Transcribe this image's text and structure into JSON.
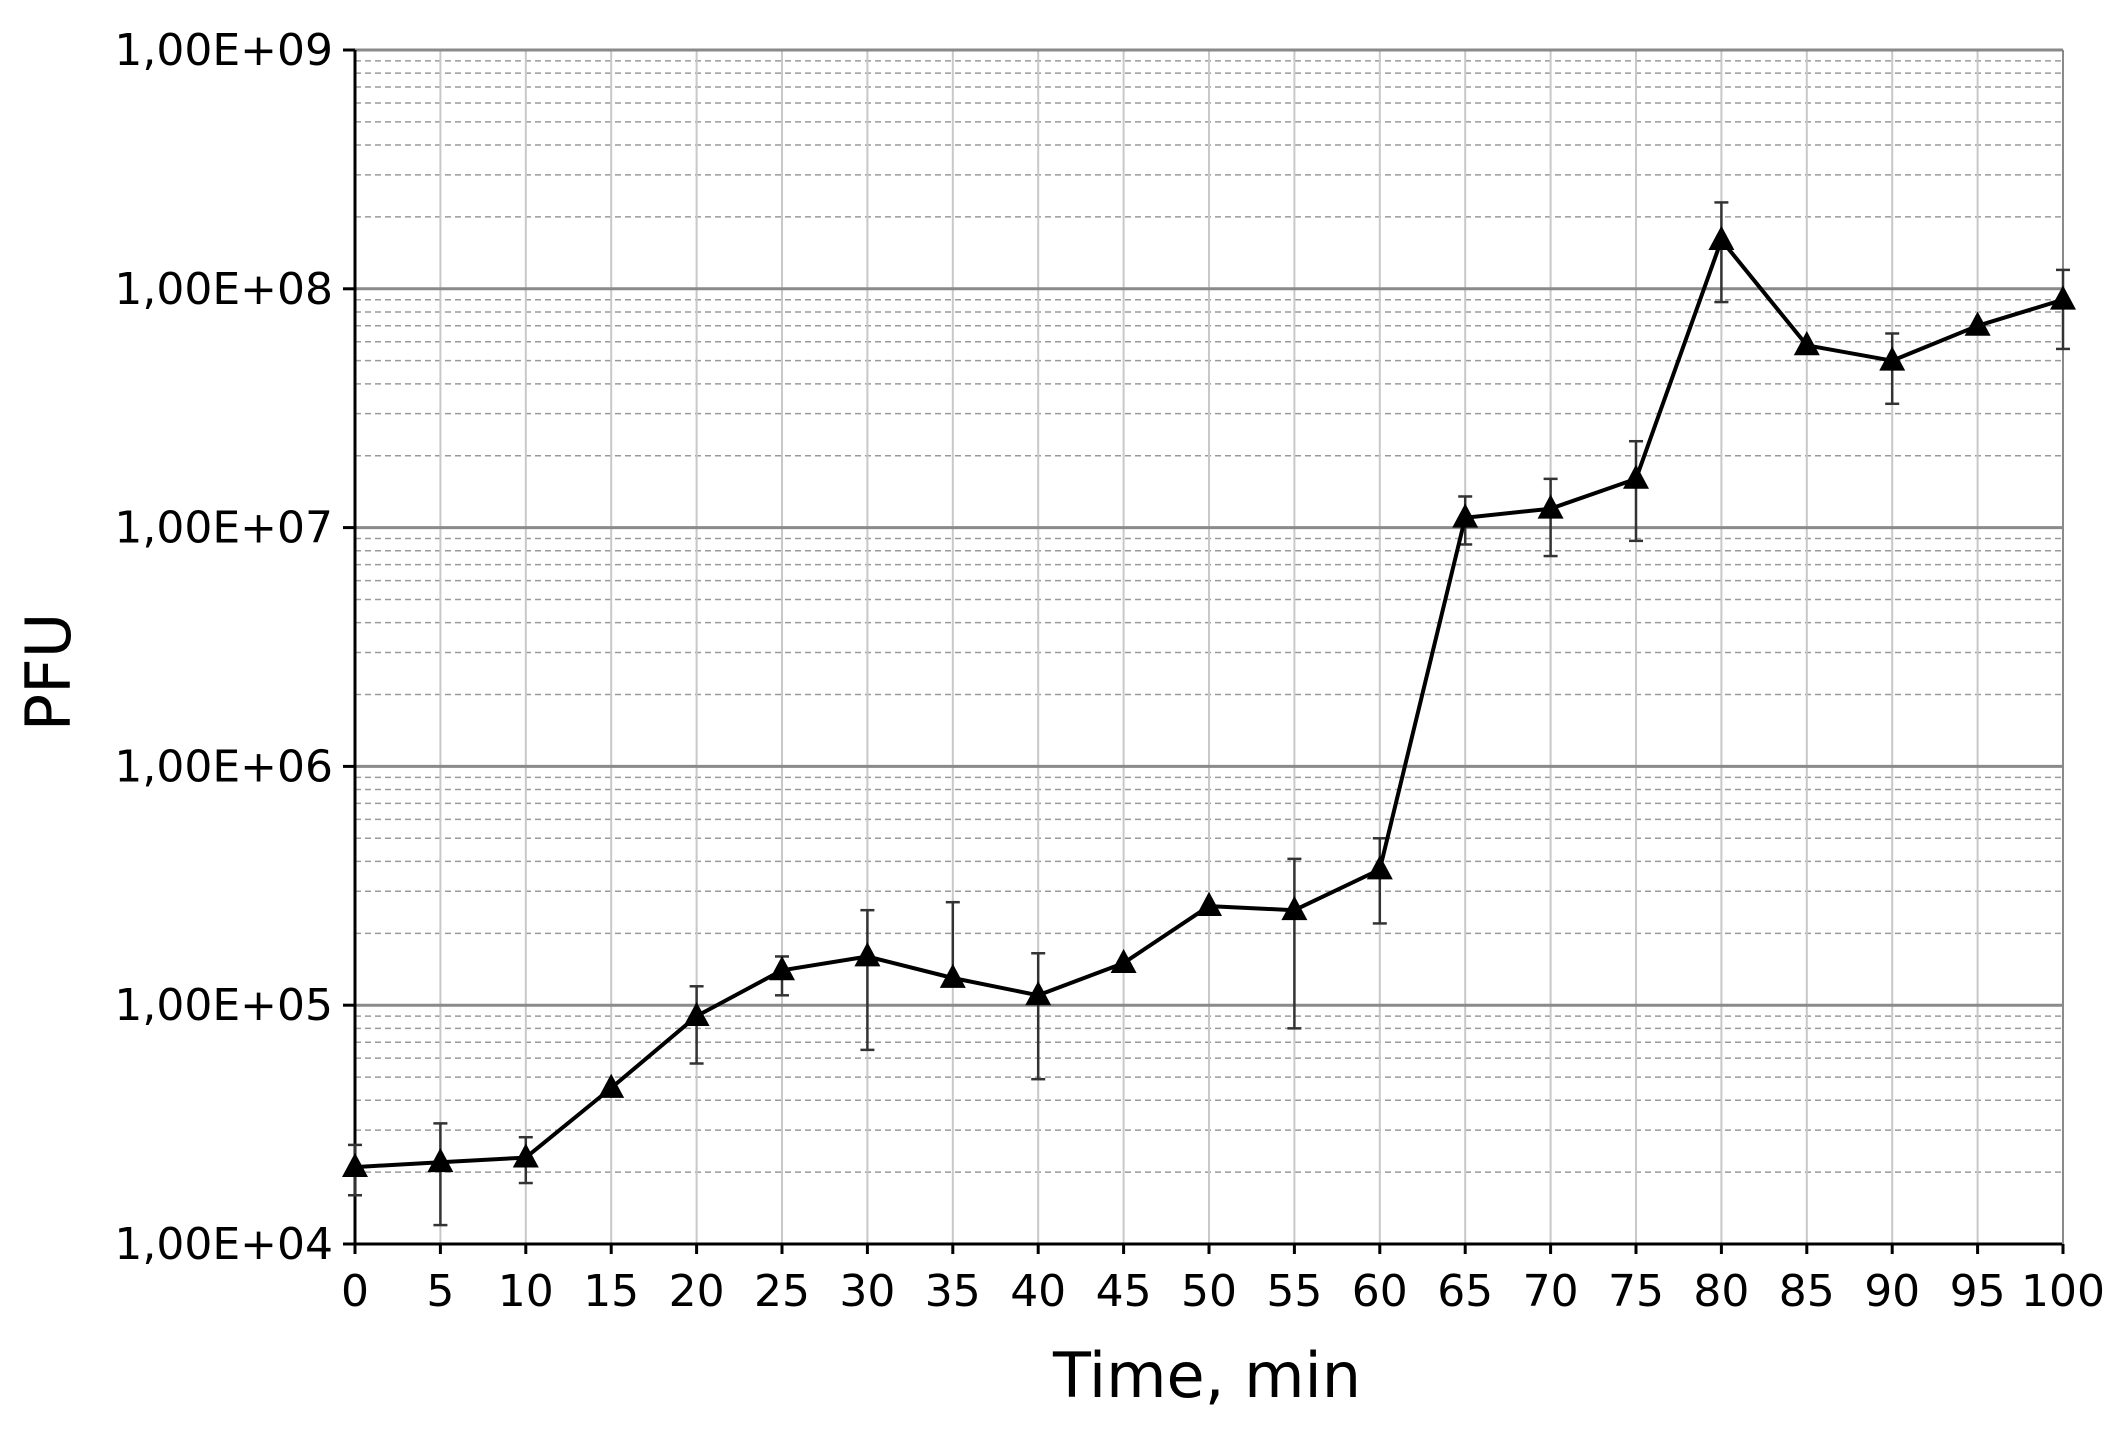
{
  "chart_data": {
    "type": "line",
    "title": "",
    "xlabel": "Time, min",
    "ylabel": "PFU",
    "y_scale": "log",
    "ylim": [
      10000,
      1000000000
    ],
    "xlim": [
      0,
      100
    ],
    "grid": true,
    "legend": "none",
    "x_tick_labels": [
      "0",
      "5",
      "10",
      "15",
      "20",
      "25",
      "30",
      "35",
      "40",
      "45",
      "50",
      "55",
      "60",
      "65",
      "70",
      "75",
      "80",
      "85",
      "90",
      "95",
      "100"
    ],
    "y_tick_labels": [
      "1,00E+04",
      "1,00E+05",
      "1,00E+06",
      "1,00E+07",
      "1,00E+08",
      "1,00E+09"
    ],
    "y_tick_values": [
      10000,
      100000,
      1000000,
      10000000,
      100000000,
      1000000000
    ],
    "series": [
      {
        "marker": "triangle",
        "color": "#000000",
        "x": [
          0,
          5,
          10,
          15,
          20,
          25,
          30,
          35,
          40,
          45,
          50,
          55,
          60,
          65,
          70,
          75,
          80,
          85,
          90,
          95,
          100
        ],
        "y": [
          21000,
          22000,
          23000,
          45000,
          90000,
          140000,
          160000,
          130000,
          110000,
          150000,
          260000,
          250000,
          370000,
          11000000,
          12000000,
          16000000,
          160000000,
          58000000,
          50000000,
          70000000,
          90000000
        ],
        "err_low": [
          16000,
          12000,
          18000,
          45000,
          57000,
          110000,
          65000,
          130000,
          49000,
          150000,
          260000,
          80000,
          220000,
          8500000,
          7600000,
          8800000,
          88000000,
          58000000,
          33000000,
          70000000,
          56000000
        ],
        "err_high": [
          26000,
          32000,
          28000,
          45000,
          120000,
          160000,
          250000,
          270000,
          165000,
          150000,
          260000,
          410000,
          500000,
          13500000,
          16000000,
          23000000,
          230000000,
          58000000,
          65000000,
          70000000,
          120000000
        ]
      }
    ]
  }
}
